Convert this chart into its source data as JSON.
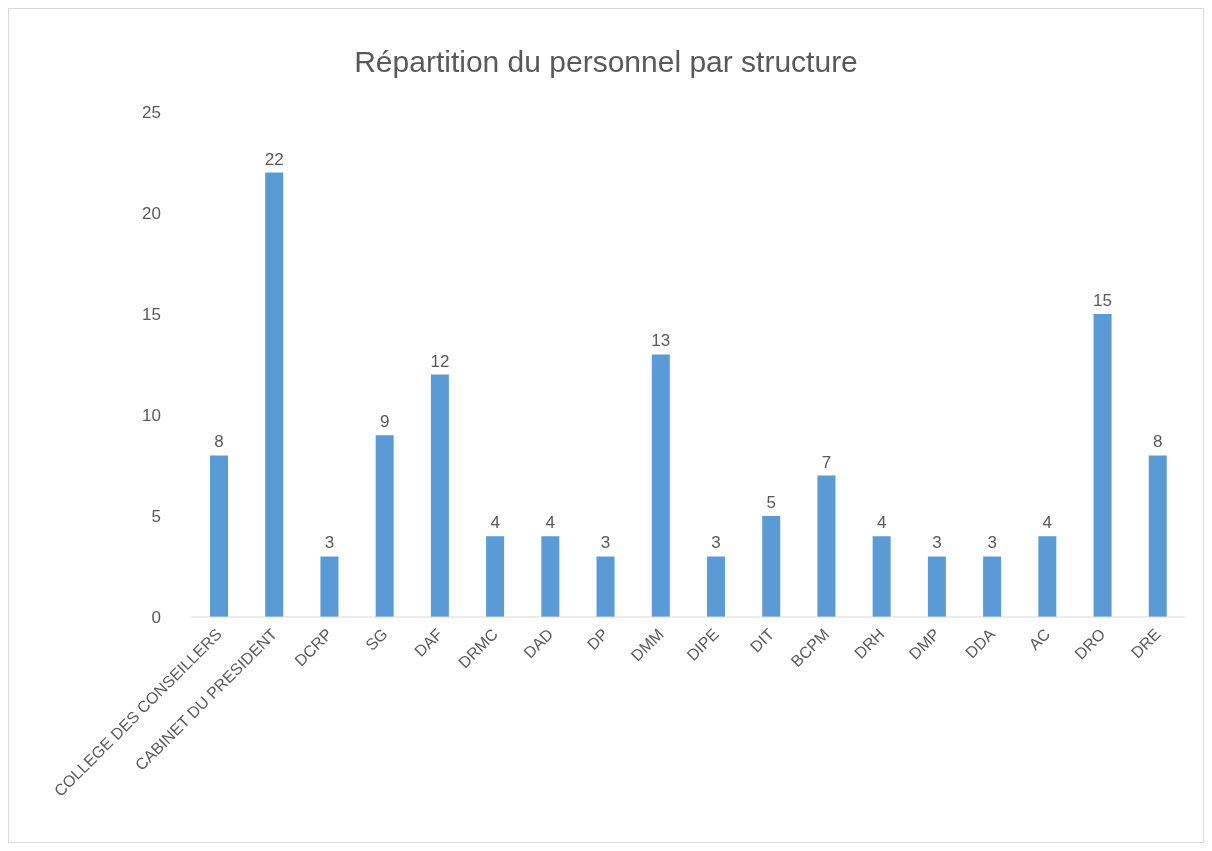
{
  "chart_data": {
    "type": "bar",
    "title": "Répartition du personnel par structure",
    "categories": [
      "COLLEGE DES CONSEILLERS",
      "CABINET DU PRESIDENT",
      "DCRP",
      "SG",
      "DAF",
      "DRMC",
      "DAD",
      "DP",
      "DMM",
      "DIPE",
      "DIT",
      "BCPM",
      "DRH",
      "DMP",
      "DDA",
      "AC",
      "DRO",
      "DRE"
    ],
    "values": [
      8,
      22,
      3,
      9,
      12,
      4,
      4,
      3,
      13,
      3,
      5,
      7,
      4,
      3,
      3,
      4,
      15,
      8
    ],
    "color": "#5b9bd5",
    "ylim": [
      0,
      25
    ],
    "yticks": [
      0,
      5,
      10,
      15,
      20,
      25
    ],
    "grid": false,
    "data_labels": true,
    "legend": false
  }
}
